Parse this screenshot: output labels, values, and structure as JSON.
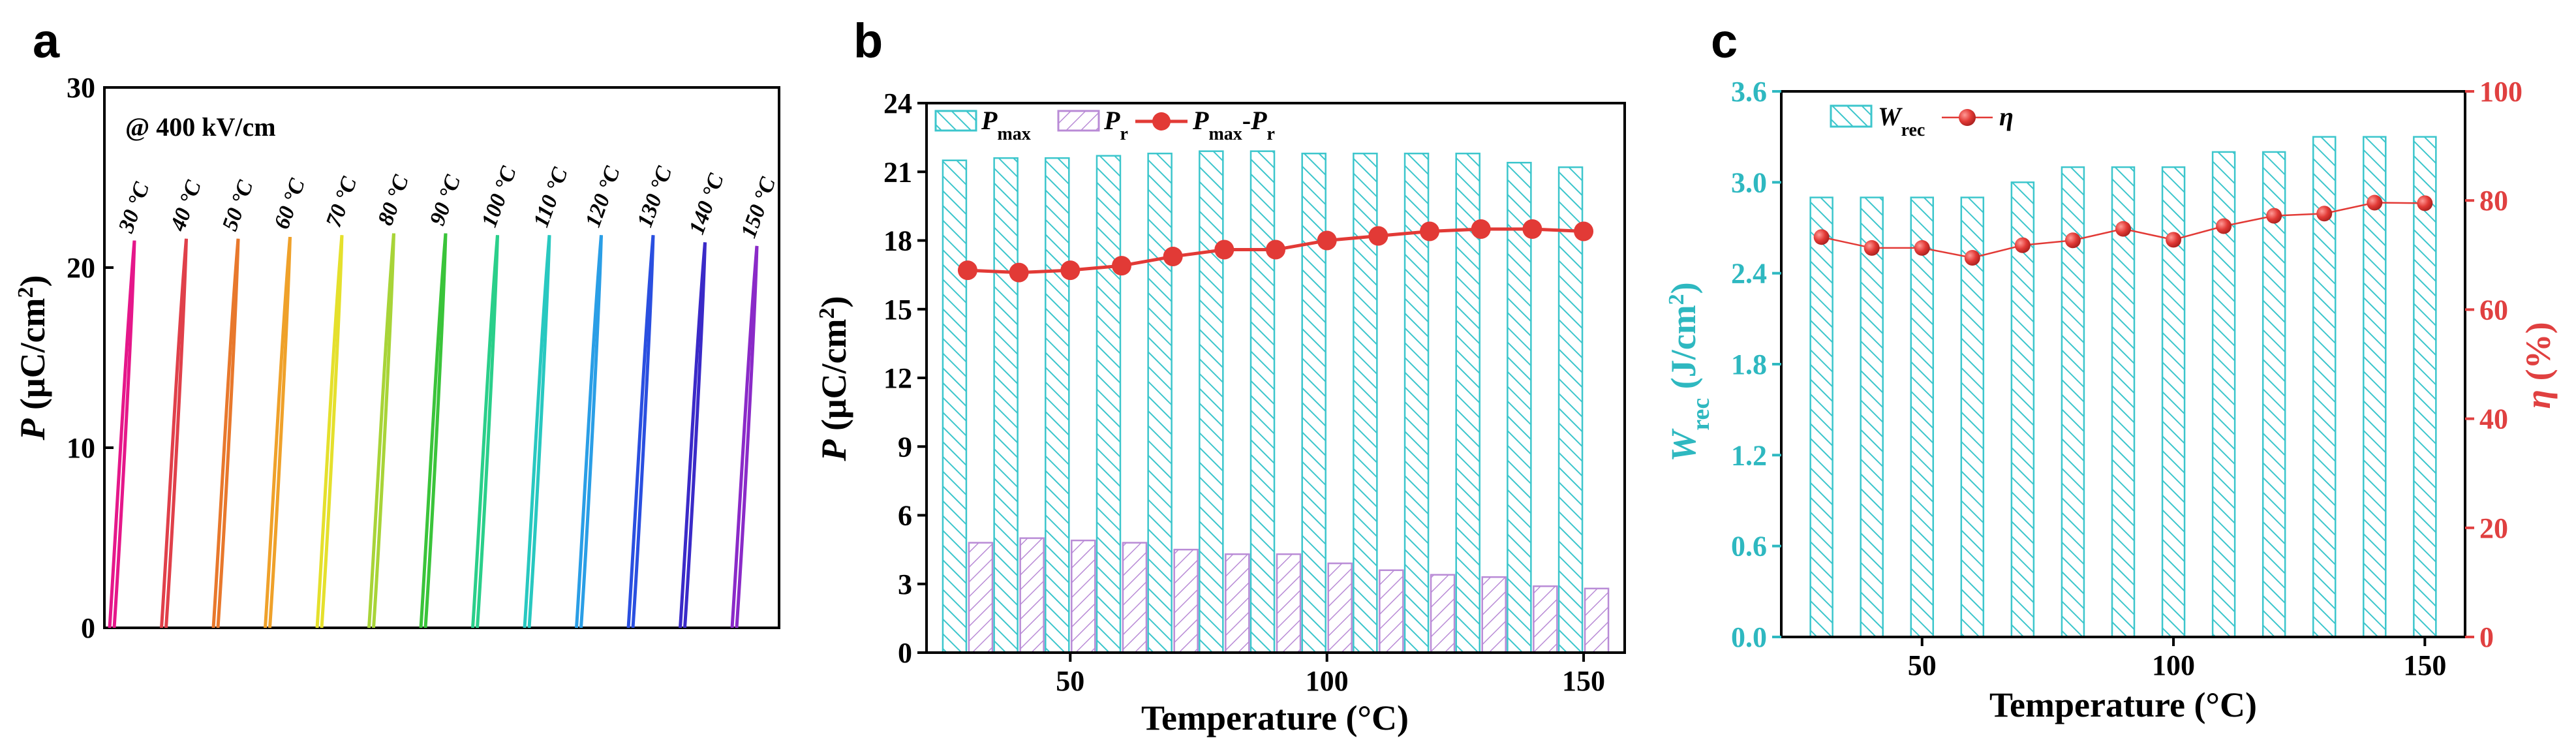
{
  "figure_labels": {
    "a": "a",
    "b": "b",
    "c": "c"
  },
  "colors": {
    "teal": "#3CC6CC",
    "purple": "#B98BD6",
    "red": "#E23A36",
    "right_axis_red": "#E04040",
    "left_axis_teal": "#2EB8C0"
  },
  "chart_data": [
    {
      "id": "a",
      "type": "line",
      "title": "",
      "annotation": "@ 400 kV/cm",
      "ylabel": "P (μC/cm²)",
      "ylabel_italic": "P",
      "ylabel_units": "(μC/cm",
      "ylabel_exp": "2",
      "ylabel_close": ")",
      "xlabel": "",
      "ylim": [
        0,
        30
      ],
      "yticks": [
        "0",
        "10",
        "20",
        "30"
      ],
      "series": [
        {
          "name": "30 °C",
          "color": "#E5178A",
          "pmax": 21.5
        },
        {
          "name": "40 °C",
          "color": "#E0404A",
          "pmax": 21.6
        },
        {
          "name": "50 °C",
          "color": "#E8782C",
          "pmax": 21.6
        },
        {
          "name": "60 °C",
          "color": "#EFA12A",
          "pmax": 21.7
        },
        {
          "name": "70 °C",
          "color": "#E5E02C",
          "pmax": 21.8
        },
        {
          "name": "80 °C",
          "color": "#A8D438",
          "pmax": 21.9
        },
        {
          "name": "90 °C",
          "color": "#3AC43A",
          "pmax": 21.9
        },
        {
          "name": "100 °C",
          "color": "#2ACF8A",
          "pmax": 21.8
        },
        {
          "name": "110 °C",
          "color": "#28C8C0",
          "pmax": 21.8
        },
        {
          "name": "120 °C",
          "color": "#2A9EE6",
          "pmax": 21.8
        },
        {
          "name": "130 °C",
          "color": "#2A4FE0",
          "pmax": 21.8
        },
        {
          "name": "140 °C",
          "color": "#3A2AC8",
          "pmax": 21.4
        },
        {
          "name": "150 °C",
          "color": "#8A2AC8",
          "pmax": 21.2
        }
      ]
    },
    {
      "id": "b",
      "type": "bar",
      "title": "",
      "xlabel": "Temperature (°C)",
      "ylabel": "P (μC/cm²)",
      "ylabel_italic": "P",
      "ylabel_units": "(μC/cm",
      "ylabel_exp": "2",
      "ylabel_close": ")",
      "xlim": [
        22,
        158
      ],
      "ylim": [
        0,
        24
      ],
      "xticks": [
        "50",
        "100",
        "150"
      ],
      "yticks": [
        "0",
        "3",
        "6",
        "9",
        "12",
        "15",
        "18",
        "21",
        "24"
      ],
      "x": [
        30,
        40,
        50,
        60,
        70,
        80,
        90,
        100,
        110,
        120,
        130,
        140,
        150
      ],
      "series": [
        {
          "name": "Pmax",
          "type": "bar",
          "color": "#3CC6CC",
          "values": [
            21.5,
            21.6,
            21.6,
            21.7,
            21.8,
            21.9,
            21.9,
            21.8,
            21.8,
            21.8,
            21.8,
            21.4,
            21.2
          ]
        },
        {
          "name": "Pr",
          "type": "bar",
          "color": "#B98BD6",
          "values": [
            4.8,
            5.0,
            4.9,
            4.8,
            4.5,
            4.3,
            4.3,
            3.9,
            3.6,
            3.4,
            3.3,
            2.9,
            2.8
          ]
        },
        {
          "name": "Pmax-Pr",
          "type": "line",
          "color": "#E23A36",
          "values": [
            16.7,
            16.6,
            16.7,
            16.9,
            17.3,
            17.6,
            17.6,
            18.0,
            18.2,
            18.4,
            18.5,
            18.5,
            18.4
          ]
        }
      ],
      "legend": {
        "pmax_base": "P",
        "pmax_sub": "max",
        "pr_base": "P",
        "pr_sub": "r",
        "diff_base1": "P",
        "diff_sub1": "max",
        "diff_dash": "-",
        "diff_base2": "P",
        "diff_sub2": "r",
        "placement": "top-left"
      }
    },
    {
      "id": "c",
      "type": "bar",
      "title": "",
      "xlabel": "Temperature (°C)",
      "ylabel": "Wrec (J/cm²)",
      "ylabel_base": "W",
      "ylabel_sub": "rec",
      "ylabel_units": " (J/cm",
      "ylabel_exp": "2",
      "ylabel_close": ")",
      "y2label": "η (%)",
      "y2label_symbol": "η",
      "y2label_units": " (%)",
      "xlim": [
        22,
        158
      ],
      "ylim": [
        0,
        3.6
      ],
      "y2lim": [
        0,
        100
      ],
      "xticks": [
        "50",
        "100",
        "150"
      ],
      "yticks": [
        "0.0",
        "0.6",
        "1.2",
        "1.8",
        "2.4",
        "3.0",
        "3.6"
      ],
      "y2ticks": [
        "0",
        "20",
        "40",
        "60",
        "80",
        "100"
      ],
      "x": [
        30,
        40,
        50,
        60,
        70,
        80,
        90,
        100,
        110,
        120,
        130,
        140,
        150
      ],
      "series": [
        {
          "name": "Wrec",
          "type": "bar",
          "axis": "left",
          "color": "#3CC6CC",
          "values": [
            2.9,
            2.9,
            2.9,
            2.9,
            3.0,
            3.1,
            3.1,
            3.1,
            3.2,
            3.2,
            3.3,
            3.3,
            3.3
          ]
        },
        {
          "name": "η",
          "type": "line",
          "axis": "right",
          "color": "#E23A36",
          "values": [
            73.3,
            71.3,
            71.3,
            69.5,
            71.8,
            72.7,
            74.8,
            72.8,
            75.3,
            77.2,
            77.6,
            79.6,
            79.5
          ]
        }
      ],
      "legend": {
        "wrec_base": "W",
        "wrec_sub": "rec",
        "eta": "η",
        "placement": "top-left"
      }
    }
  ]
}
